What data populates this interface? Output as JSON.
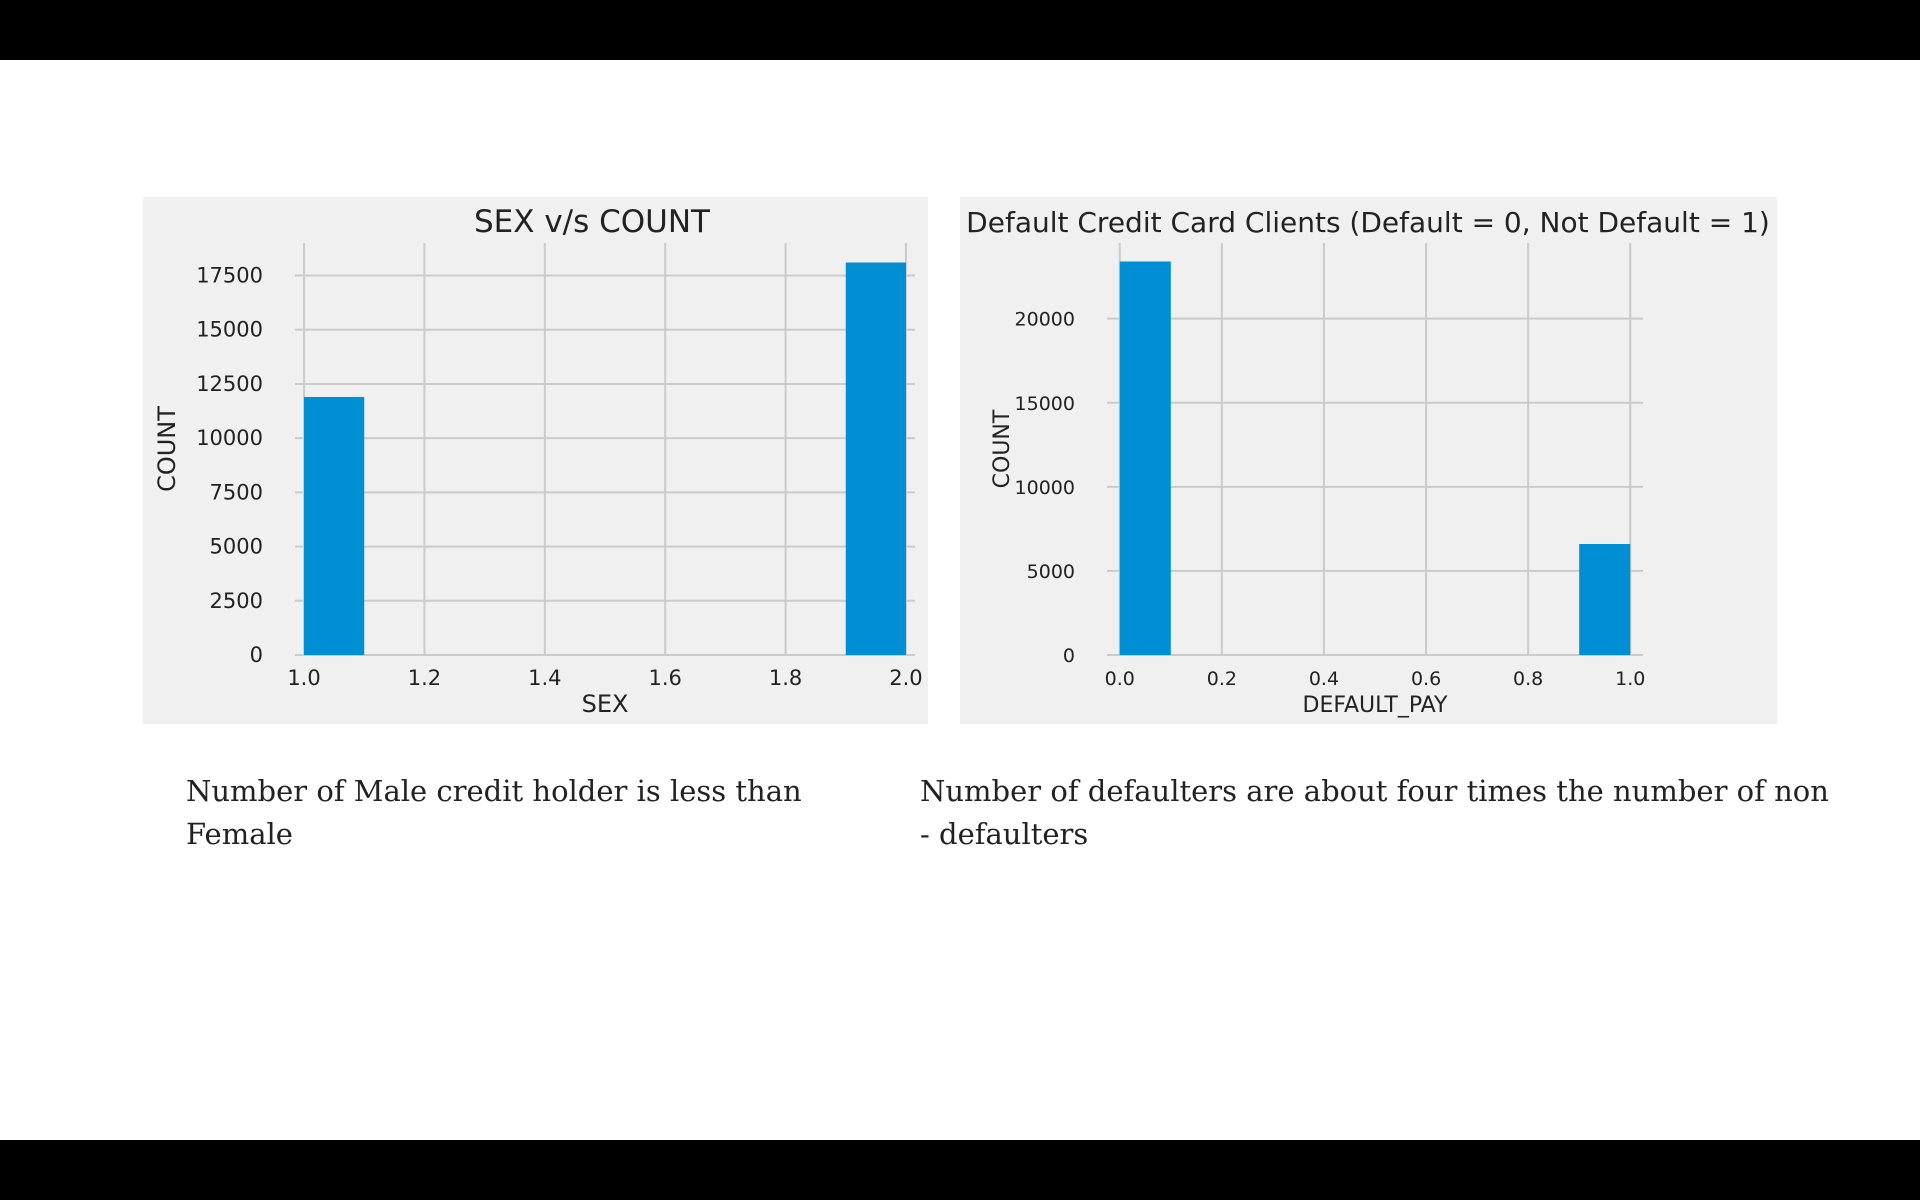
{
  "colors": {
    "letterbox": "#000000",
    "page_background": "#ffffff",
    "plot_background": "#f0f0f0",
    "grid": "#cbcbcb",
    "bar": "#008fd5",
    "text": "#222222"
  },
  "captions": {
    "left": "Number of Male credit holder is less than Female",
    "right": "Number of defaulters are about four times the number of non - defaulters"
  },
  "chart_data": [
    {
      "type": "bar",
      "title": "SEX v/s COUNT",
      "xlabel": "SEX",
      "ylabel": "COUNT",
      "xlim": [
        1.0,
        2.0
      ],
      "ylim": [
        0,
        19000
      ],
      "xticks": [
        1.0,
        1.2,
        1.4,
        1.6,
        1.8,
        2.0
      ],
      "xtick_labels": [
        "1.0",
        "1.2",
        "1.4",
        "1.6",
        "1.8",
        "2.0"
      ],
      "yticks": [
        0,
        2500,
        5000,
        7500,
        10000,
        12500,
        15000,
        17500
      ],
      "ytick_labels": [
        "0",
        "2500",
        "5000",
        "7500",
        "10000",
        "12500",
        "15000",
        "17500"
      ],
      "grid": true,
      "bars": [
        {
          "x0": 1.0,
          "x1": 1.1,
          "value": 11900
        },
        {
          "x0": 1.9,
          "x1": 2.0,
          "value": 18100
        }
      ]
    },
    {
      "type": "bar",
      "title": "Default Credit Card Clients (Default = 0, Not Default = 1)",
      "xlabel": "DEFAULT_PAY",
      "ylabel": "COUNT",
      "xlim": [
        0.0,
        1.0
      ],
      "ylim": [
        0,
        24500
      ],
      "xticks": [
        0.0,
        0.2,
        0.4,
        0.6,
        0.8,
        1.0
      ],
      "xtick_labels": [
        "0.0",
        "0.2",
        "0.4",
        "0.6",
        "0.8",
        "1.0"
      ],
      "yticks": [
        0,
        5000,
        10000,
        15000,
        20000
      ],
      "ytick_labels": [
        "0",
        "5000",
        "10000",
        "15000",
        "20000"
      ],
      "grid": true,
      "bars": [
        {
          "x0": 0.0,
          "x1": 0.1,
          "value": 23400
        },
        {
          "x0": 0.9,
          "x1": 1.0,
          "value": 6600
        }
      ]
    }
  ]
}
